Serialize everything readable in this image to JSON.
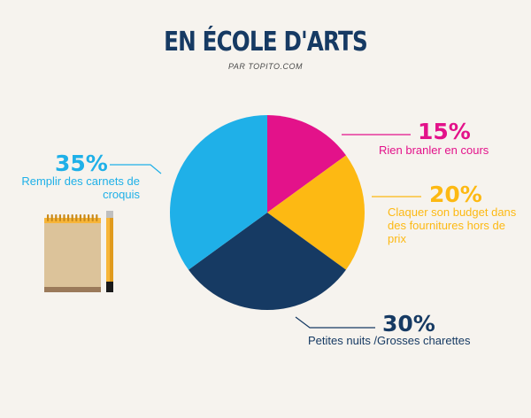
{
  "title": "EN ÉCOLE D'ARTS",
  "subtitle": "PAR TOPITO.COM",
  "colors": {
    "background": "#f6f3ee",
    "title": "#163a63"
  },
  "chart_data": {
    "type": "pie",
    "title": "EN ÉCOLE D'ARTS",
    "subtitle": "PAR TOPITO.COM",
    "unit": "%",
    "slices": [
      {
        "label": "Rien branler en cours",
        "value": 15,
        "pct_text": "15%",
        "color": "#e3128a"
      },
      {
        "label": "Claquer son budget dans des fournitures hors de prix",
        "value": 20,
        "pct_text": "20%",
        "color": "#fdb913"
      },
      {
        "label": "Petites nuits /Grosses charettes",
        "value": 30,
        "pct_text": "30%",
        "color": "#163a63"
      },
      {
        "label": "Remplir des carnets de croquis",
        "value": 35,
        "pct_text": "35%",
        "color": "#1fb0e8"
      }
    ],
    "legend": "callouts"
  }
}
